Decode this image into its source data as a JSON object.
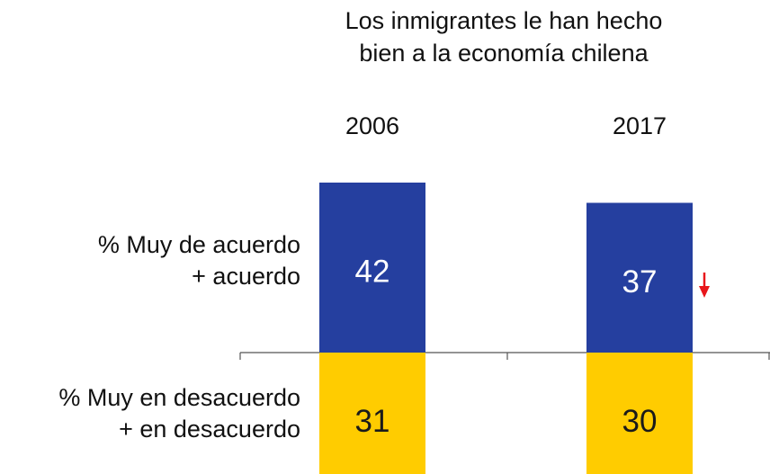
{
  "chart_data": {
    "type": "bar",
    "title": "Los inmigrantes le han hecho bien a la economía chilena",
    "title_lines": [
      "Los inmigrantes le han hecho",
      "bien a la economía chilena"
    ],
    "categories": [
      "2006",
      "2017"
    ],
    "series": [
      {
        "name": "% Muy de acuerdo + acuerdo",
        "label_lines": [
          "% Muy de acuerdo",
          "+ acuerdo"
        ],
        "values": [
          42,
          37
        ],
        "direction": "up",
        "color": "#253F9F"
      },
      {
        "name": "% Muy en desacuerdo + en desacuerdo",
        "label_lines": [
          "% Muy en desacuerdo",
          "+ en desacuerdo"
        ],
        "values": [
          31,
          30
        ],
        "direction": "down",
        "color": "#FFCC00"
      }
    ],
    "annotations": [
      {
        "type": "arrow-down",
        "color": "#E8161B",
        "category": "2017",
        "series": "% Muy de acuerdo + acuerdo"
      }
    ],
    "grid": false,
    "legend": "none",
    "stacked": "diverging"
  }
}
